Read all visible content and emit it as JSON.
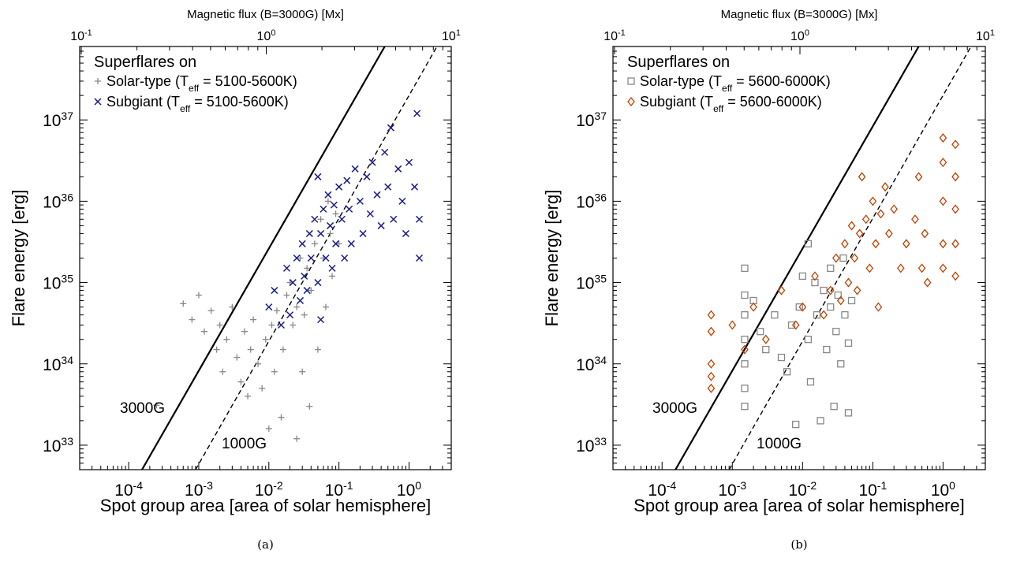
{
  "chart_data": [
    {
      "type": "scatter",
      "caption": "(a)",
      "top_axis_label": "Magnetic flux (B=3000G) [Mx]",
      "top_ticks": [
        {
          "base": "10",
          "exp": "-1",
          "value": 0.1
        },
        {
          "base": "10",
          "exp": "0",
          "value": 1
        },
        {
          "base": "10",
          "exp": "1",
          "value": 10
        }
      ],
      "xlabel": "Spot group area [area of solar hemisphere]",
      "ylabel": "Flare energy [erg]",
      "x_scale": "log",
      "y_scale": "log",
      "xlim": [
        2e-05,
        4
      ],
      "ylim": [
        5e+32,
        8e+37
      ],
      "x_ticks": [
        {
          "base": "10",
          "exp": "-4",
          "value": 0.0001
        },
        {
          "base": "10",
          "exp": "-3",
          "value": 0.001
        },
        {
          "base": "10",
          "exp": "-2",
          "value": 0.01
        },
        {
          "base": "10",
          "exp": "-1",
          "value": 0.1
        },
        {
          "base": "10",
          "exp": "0",
          "value": 1
        }
      ],
      "y_ticks": [
        {
          "base": "10",
          "exp": "33",
          "value": 1e+33
        },
        {
          "base": "10",
          "exp": "34",
          "value": 1e+34
        },
        {
          "base": "10",
          "exp": "35",
          "value": 1e+35
        },
        {
          "base": "10",
          "exp": "36",
          "value": 1e+36
        },
        {
          "base": "10",
          "exp": "37",
          "value": 1e+37
        }
      ],
      "legend": {
        "title": "Superflares on",
        "placement": "top-left"
      },
      "lines": [
        {
          "label": "3000G",
          "style": "solid",
          "points": [
            [
              0.000155,
              5e+32
            ],
            [
              0.45,
              8e+37
            ]
          ]
        },
        {
          "label": "1000G",
          "style": "dashed",
          "points": [
            [
              0.0009,
              5e+32
            ],
            [
              2.5,
              8e+37
            ]
          ]
        }
      ],
      "series": [
        {
          "name_parts": [
            "Solar-type (T",
            "eff",
            " = 5100-5600K)"
          ],
          "marker": "plus",
          "color": "#888888",
          "points": [
            [
              0.00025,
              3.1e+33
            ],
            [
              0.0006,
              5.5e+34
            ],
            [
              0.0008,
              3.5e+34
            ],
            [
              0.001,
              7e+34
            ],
            [
              0.0012,
              2.5e+34
            ],
            [
              0.0015,
              4.5e+34
            ],
            [
              0.0018,
              1.5e+34
            ],
            [
              0.002,
              3e+34
            ],
            [
              0.0022,
              8e+33
            ],
            [
              0.0025,
              2e+34
            ],
            [
              0.003,
              5e+34
            ],
            [
              0.0035,
              1.2e+34
            ],
            [
              0.004,
              6e+33
            ],
            [
              0.0045,
              2.5e+34
            ],
            [
              0.005,
              4e+33
            ],
            [
              0.0055,
              1.5e+34
            ],
            [
              0.006,
              3.5e+34
            ],
            [
              0.007,
              1e+34
            ],
            [
              0.008,
              5e+33
            ],
            [
              0.009,
              2e+34
            ],
            [
              0.01,
              1.6e+33
            ],
            [
              0.011,
              3e+34
            ],
            [
              0.012,
              8e+33
            ],
            [
              0.013,
              4.5e+34
            ],
            [
              0.015,
              2.2e+33
            ],
            [
              0.016,
              1.5e+34
            ],
            [
              0.018,
              7e+34
            ],
            [
              0.02,
              1e+35
            ],
            [
              0.022,
              3e+34
            ],
            [
              0.025,
              1.2e+33
            ],
            [
              0.025,
              5e+34
            ],
            [
              0.028,
              2e+35
            ],
            [
              0.03,
              8e+33
            ],
            [
              0.032,
              4e+34
            ],
            [
              0.035,
              1.5e+35
            ],
            [
              0.038,
              3e+33
            ],
            [
              0.04,
              8e+34
            ],
            [
              0.045,
              3e+35
            ],
            [
              0.05,
              1.5e+34
            ],
            [
              0.055,
              6e+35
            ],
            [
              0.06,
              2e+35
            ],
            [
              0.065,
              5e+34
            ],
            [
              0.07,
              1e+36
            ],
            [
              0.075,
              4e+35
            ],
            [
              0.08,
              1.2e+35
            ],
            [
              0.09,
              7e+35
            ],
            [
              0.1,
              3e+35
            ]
          ]
        },
        {
          "name_parts": [
            "Subgiant (T",
            "eff",
            " = 5100-5600K)"
          ],
          "marker": "x",
          "color": "#1c1c8a",
          "points": [
            [
              0.01,
              5e+34
            ],
            [
              0.012,
              8e+34
            ],
            [
              0.015,
              3e+34
            ],
            [
              0.018,
              1.5e+35
            ],
            [
              0.02,
              4e+34
            ],
            [
              0.022,
              1e+35
            ],
            [
              0.025,
              2e+35
            ],
            [
              0.028,
              6e+34
            ],
            [
              0.03,
              3e+35
            ],
            [
              0.032,
              1.2e+35
            ],
            [
              0.035,
              8e+34
            ],
            [
              0.038,
              4e+35
            ],
            [
              0.04,
              2e+35
            ],
            [
              0.045,
              6e+35
            ],
            [
              0.05,
              1e+35
            ],
            [
              0.05,
              2e+36
            ],
            [
              0.055,
              3.5e+34
            ],
            [
              0.055,
              4e+35
            ],
            [
              0.06,
              8e+35
            ],
            [
              0.065,
              2e+35
            ],
            [
              0.07,
              1.2e+36
            ],
            [
              0.075,
              5e+35
            ],
            [
              0.08,
              1.5e+35
            ],
            [
              0.085,
              9e+35
            ],
            [
              0.09,
              3e+35
            ],
            [
              0.1,
              1.5e+36
            ],
            [
              0.11,
              6e+35
            ],
            [
              0.12,
              2e+35
            ],
            [
              0.13,
              1.8e+36
            ],
            [
              0.14,
              8e+35
            ],
            [
              0.15,
              3e+35
            ],
            [
              0.17,
              2.5e+36
            ],
            [
              0.2,
              1e+36
            ],
            [
              0.22,
              4e+35
            ],
            [
              0.25,
              2e+36
            ],
            [
              0.28,
              7e+35
            ],
            [
              0.3,
              3e+36
            ],
            [
              0.35,
              1.2e+36
            ],
            [
              0.4,
              5e+35
            ],
            [
              0.45,
              4e+36
            ],
            [
              0.5,
              1.5e+36
            ],
            [
              0.55,
              8e+36
            ],
            [
              0.6,
              6e+35
            ],
            [
              0.7,
              2.5e+36
            ],
            [
              0.8,
              1e+36
            ],
            [
              0.9,
              4e+35
            ],
            [
              1.0,
              3e+36
            ],
            [
              1.2,
              1.5e+36
            ],
            [
              1.3,
              1.2e+37
            ],
            [
              1.4,
              6e+35
            ],
            [
              1.4,
              2e+35
            ]
          ]
        }
      ]
    },
    {
      "type": "scatter",
      "caption": "(b)",
      "top_axis_label": "Magnetic flux (B=3000G) [Mx]",
      "top_ticks": [
        {
          "base": "10",
          "exp": "-1",
          "value": 0.1
        },
        {
          "base": "10",
          "exp": "0",
          "value": 1
        },
        {
          "base": "10",
          "exp": "1",
          "value": 10
        }
      ],
      "xlabel": "Spot group area [area of solar hemisphere]",
      "ylabel": "Flare energy [erg]",
      "x_scale": "log",
      "y_scale": "log",
      "xlim": [
        2e-05,
        4
      ],
      "ylim": [
        5e+32,
        8e+37
      ],
      "x_ticks": [
        {
          "base": "10",
          "exp": "-4",
          "value": 0.0001
        },
        {
          "base": "10",
          "exp": "-3",
          "value": 0.001
        },
        {
          "base": "10",
          "exp": "-2",
          "value": 0.01
        },
        {
          "base": "10",
          "exp": "-1",
          "value": 0.1
        },
        {
          "base": "10",
          "exp": "0",
          "value": 1
        }
      ],
      "y_ticks": [
        {
          "base": "10",
          "exp": "33",
          "value": 1e+33
        },
        {
          "base": "10",
          "exp": "34",
          "value": 1e+34
        },
        {
          "base": "10",
          "exp": "35",
          "value": 1e+35
        },
        {
          "base": "10",
          "exp": "36",
          "value": 1e+36
        },
        {
          "base": "10",
          "exp": "37",
          "value": 1e+37
        }
      ],
      "legend": {
        "title": "Superflares on",
        "placement": "top-left"
      },
      "lines": [
        {
          "label": "3000G",
          "style": "solid",
          "points": [
            [
              0.000155,
              5e+32
            ],
            [
              0.45,
              8e+37
            ]
          ]
        },
        {
          "label": "1000G",
          "style": "dashed",
          "points": [
            [
              0.0009,
              5e+32
            ],
            [
              2.5,
              8e+37
            ]
          ]
        }
      ],
      "series": [
        {
          "name_parts": [
            "Solar-type (T",
            "eff",
            " = 5600-6000K)"
          ],
          "marker": "square",
          "color": "#888888",
          "points": [
            [
              0.0015,
              1.5e+35
            ],
            [
              0.0015,
              7e+34
            ],
            [
              0.0015,
              4e+34
            ],
            [
              0.0015,
              2e+34
            ],
            [
              0.0015,
              1e+34
            ],
            [
              0.0015,
              5e+33
            ],
            [
              0.0015,
              3e+33
            ],
            [
              0.002,
              6e+34
            ],
            [
              0.0025,
              2.5e+34
            ],
            [
              0.003,
              1.5e+34
            ],
            [
              0.004,
              4e+34
            ],
            [
              0.005,
              1.2e+34
            ],
            [
              0.006,
              8e+33
            ],
            [
              0.007,
              3e+34
            ],
            [
              0.008,
              1.8e+33
            ],
            [
              0.009,
              5e+34
            ],
            [
              0.01,
              1.2e+35
            ],
            [
              0.012,
              2e+34
            ],
            [
              0.012,
              3e+35
            ],
            [
              0.013,
              6e+33
            ],
            [
              0.015,
              1e+35
            ],
            [
              0.016,
              4e+34
            ],
            [
              0.018,
              2e+33
            ],
            [
              0.02,
              8e+34
            ],
            [
              0.022,
              1.5e+34
            ],
            [
              0.025,
              5e+34
            ],
            [
              0.025,
              1.5e+35
            ],
            [
              0.028,
              3e+33
            ],
            [
              0.03,
              2.5e+34
            ],
            [
              0.032,
              7e+34
            ],
            [
              0.035,
              1e+34
            ],
            [
              0.038,
              2e+35
            ],
            [
              0.04,
              4e+34
            ],
            [
              0.045,
              2.5e+33
            ],
            [
              0.045,
              1.8e+34
            ],
            [
              0.05,
              6e+34
            ]
          ]
        },
        {
          "name_parts": [
            "Subgiant (T",
            "eff",
            " = 5600-6000K)"
          ],
          "marker": "diamond",
          "color": "#c04000",
          "points": [
            [
              0.0005,
              2.5e+34
            ],
            [
              0.0005,
              1e+34
            ],
            [
              0.0005,
              5e+33
            ],
            [
              0.0005,
              4e+34
            ],
            [
              0.0005,
              7e+33
            ],
            [
              0.001,
              3e+34
            ],
            [
              0.0015,
              1.5e+34
            ],
            [
              0.002,
              5e+34
            ],
            [
              0.003,
              2e+34
            ],
            [
              0.005,
              8e+34
            ],
            [
              0.008,
              3e+34
            ],
            [
              0.01,
              5e+34
            ],
            [
              0.015,
              1.2e+35
            ],
            [
              0.02,
              4e+34
            ],
            [
              0.025,
              8e+34
            ],
            [
              0.03,
              2e+35
            ],
            [
              0.035,
              6e+34
            ],
            [
              0.04,
              3e+35
            ],
            [
              0.045,
              1e+35
            ],
            [
              0.05,
              5e+35
            ],
            [
              0.055,
              2e+35
            ],
            [
              0.06,
              8e+34
            ],
            [
              0.065,
              4e+35
            ],
            [
              0.07,
              2e+36
            ],
            [
              0.08,
              6e+35
            ],
            [
              0.09,
              1.5e+35
            ],
            [
              0.1,
              1e+36
            ],
            [
              0.11,
              3e+35
            ],
            [
              0.12,
              5e+34
            ],
            [
              0.13,
              7e+35
            ],
            [
              0.15,
              1.5e+36
            ],
            [
              0.17,
              4e+35
            ],
            [
              0.2,
              8e+35
            ],
            [
              0.25,
              1.5e+35
            ],
            [
              0.3,
              3e+35
            ],
            [
              0.4,
              6e+35
            ],
            [
              0.45,
              2e+36
            ],
            [
              0.5,
              1.5e+35
            ],
            [
              0.55,
              4e+35
            ],
            [
              0.6,
              1e+35
            ],
            [
              1.0,
              6e+36
            ],
            [
              1.0,
              3e+36
            ],
            [
              1.0,
              1e+36
            ],
            [
              1.0,
              3e+35
            ],
            [
              1.0,
              1.5e+35
            ],
            [
              1.5,
              5e+36
            ],
            [
              1.5,
              2e+36
            ],
            [
              1.5,
              8e+35
            ],
            [
              1.5,
              3e+35
            ],
            [
              1.5,
              1.2e+35
            ]
          ]
        }
      ]
    }
  ]
}
